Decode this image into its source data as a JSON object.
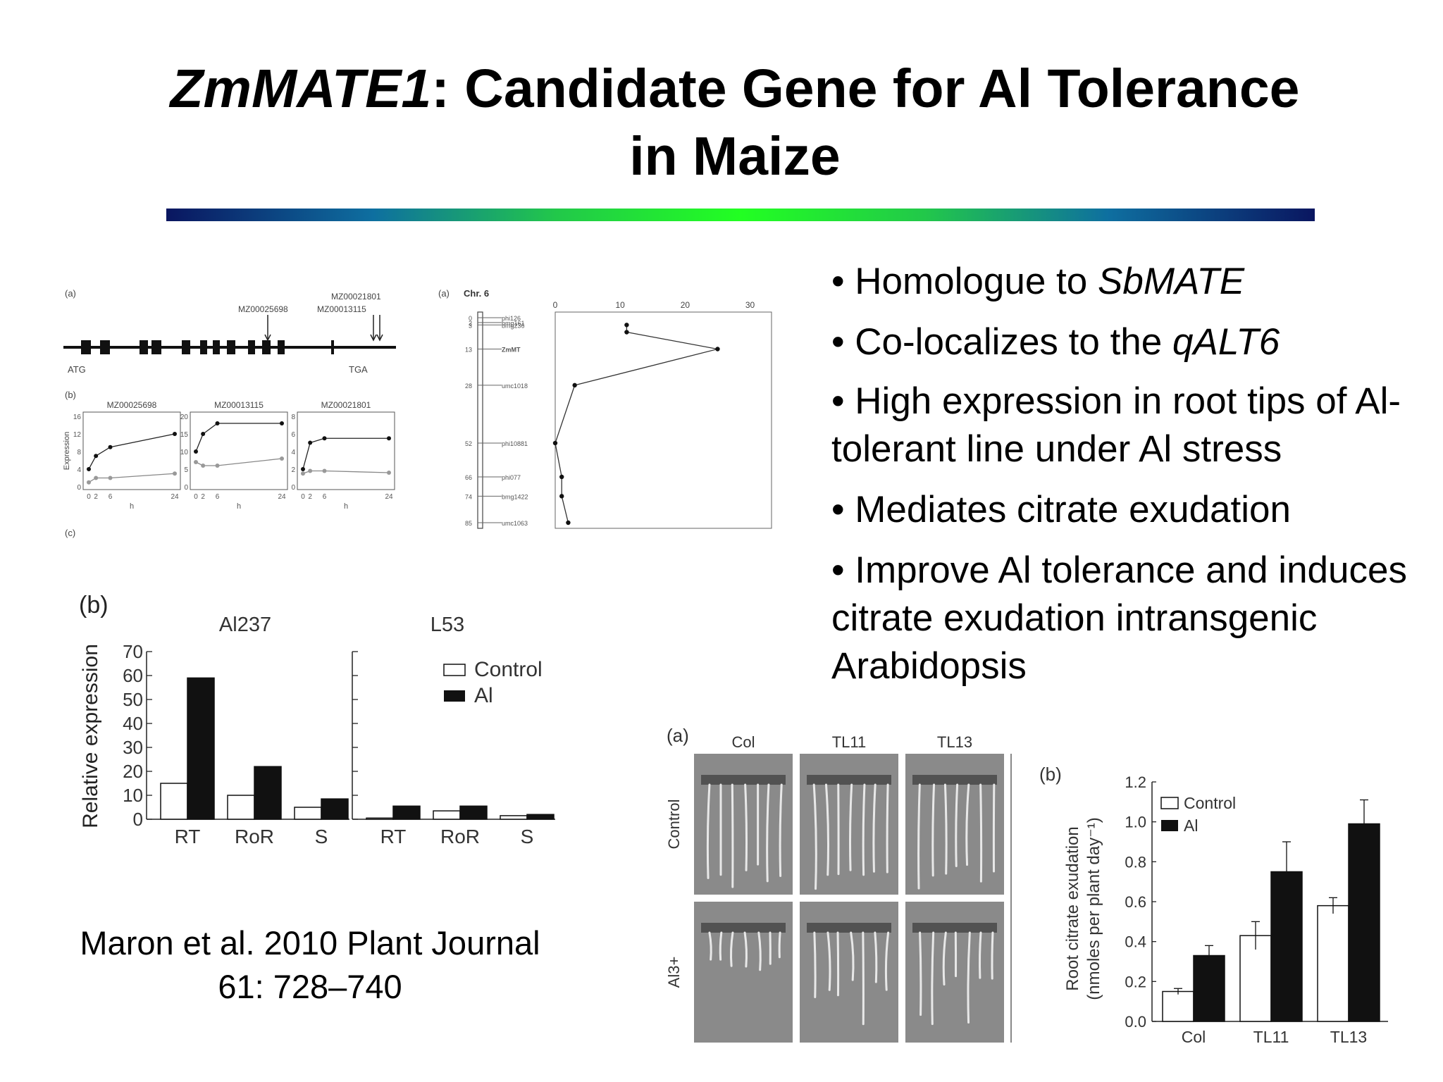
{
  "slide": {
    "title_italic": "ZmMATE1",
    "title_rest": ": Candidate Gene for Al Tolerance",
    "title_line2": "in Maize",
    "accent_gradient": [
      "#0a1660",
      "#0e6fa0",
      "#22ff22"
    ]
  },
  "bullets": [
    {
      "segments": [
        {
          "text": "• Homologue to ",
          "italic": false
        },
        {
          "text": "SbMATE",
          "italic": true
        }
      ]
    },
    {
      "segments": [
        {
          "text": "• Co-localizes to the ",
          "italic": false
        },
        {
          "text": "qALT6",
          "italic": true
        }
      ]
    },
    {
      "segments": [
        {
          "text": "• High expression in root tips of Al-tolerant line under Al stress",
          "italic": false
        }
      ]
    },
    {
      "segments": [
        {
          "text": "• Mediates citrate exudation",
          "italic": false
        }
      ]
    },
    {
      "segments": [
        {
          "text": "• Improve Al tolerance and induces citrate exudation intransgenic Arabidopsis",
          "italic": false
        }
      ]
    }
  ],
  "citation": {
    "line1": "Maron et al. 2010 Plant Journal",
    "line2": "61: 728–740"
  },
  "chart_data": [
    {
      "type": "line",
      "panel": "(b)",
      "title": "MZ00025698",
      "xlabel": "h",
      "ylabel": "Expression",
      "x_ticks": [
        "0",
        "2",
        "6",
        "24"
      ],
      "y_ticks": [
        "0",
        "4",
        "8",
        "12",
        "16"
      ],
      "ylim": [
        0,
        16
      ],
      "series": [
        {
          "x": [
            0,
            2,
            6,
            24
          ],
          "values": [
            4,
            7,
            9,
            12
          ]
        },
        {
          "x": [
            0,
            2,
            6,
            24
          ],
          "values": [
            1,
            2,
            2,
            3
          ]
        }
      ]
    },
    {
      "type": "line",
      "title": "MZ00013115",
      "xlabel": "h",
      "x_ticks": [
        "0",
        "2",
        "6",
        "24"
      ],
      "y_ticks": [
        "0",
        "5",
        "10",
        "15",
        "20"
      ],
      "ylim": [
        0,
        20
      ],
      "series": [
        {
          "x": [
            0,
            2,
            6,
            24
          ],
          "values": [
            10,
            15,
            18,
            18
          ]
        },
        {
          "x": [
            0,
            2,
            6,
            24
          ],
          "values": [
            7,
            6,
            6,
            8
          ]
        }
      ]
    },
    {
      "type": "line",
      "title": "MZ00021801",
      "xlabel": "h",
      "x_ticks": [
        "0",
        "2",
        "6",
        "24"
      ],
      "y_ticks": [
        "0",
        "2",
        "4",
        "6",
        "8"
      ],
      "ylim": [
        0,
        8
      ],
      "series": [
        {
          "x": [
            0,
            2,
            6,
            24
          ],
          "values": [
            2,
            5,
            5.5,
            5.5
          ]
        },
        {
          "x": [
            0,
            2,
            6,
            24
          ],
          "values": [
            1.5,
            1.8,
            1.8,
            1.6
          ]
        }
      ]
    },
    {
      "type": "line",
      "panel": "(a)",
      "title": "Chr. 6",
      "x_ticks": [
        "0",
        "10",
        "20",
        "30"
      ],
      "xlim": [
        0,
        32
      ],
      "markers": [
        {
          "pos": 0,
          "label": "phi126"
        },
        {
          "pos": 2,
          "label": "bmg161"
        },
        {
          "pos": 3,
          "label": "bmg236"
        },
        {
          "pos": 13,
          "label": "ZmMT"
        },
        {
          "pos": 28,
          "label": "umc1018"
        },
        {
          "pos": 52,
          "label": "phi10881"
        },
        {
          "pos": 66,
          "label": "phi077"
        },
        {
          "pos": 74,
          "label": "bmg1422"
        },
        {
          "pos": 85,
          "label": "umc1063"
        }
      ],
      "profile": [
        {
          "pos": 3,
          "value": 11
        },
        {
          "pos": 6,
          "value": 11
        },
        {
          "pos": 13,
          "value": 25
        },
        {
          "pos": 28,
          "value": 3
        },
        {
          "pos": 52,
          "value": 0
        },
        {
          "pos": 66,
          "value": 1
        },
        {
          "pos": 74,
          "value": 1
        },
        {
          "pos": 85,
          "value": 2
        }
      ]
    },
    {
      "type": "bar",
      "panel": "(b)",
      "ylabel": "Relative expression",
      "ylim": [
        0,
        70
      ],
      "y_ticks": [
        "0",
        "10",
        "20",
        "30",
        "40",
        "50",
        "60",
        "70"
      ],
      "legend": [
        "Control",
        "Al"
      ],
      "legend_position": "top-right",
      "groups": [
        {
          "title": "Al237",
          "categories": [
            "RT",
            "RoR",
            "S"
          ],
          "series": [
            {
              "name": "Control",
              "values": [
                15,
                10,
                5
              ]
            },
            {
              "name": "Al",
              "values": [
                59,
                22,
                8.5
              ]
            }
          ]
        },
        {
          "title": "L53",
          "categories": [
            "RT",
            "RoR",
            "S"
          ],
          "series": [
            {
              "name": "Control",
              "values": [
                0.5,
                3.5,
                1.5
              ]
            },
            {
              "name": "Al",
              "values": [
                5.5,
                5.5,
                2
              ]
            }
          ]
        }
      ]
    },
    {
      "type": "bar",
      "panel": "(b)",
      "ylabel_line1": "Root citrate exudation",
      "ylabel_line2": "(nmoles per plant day⁻¹)",
      "ylim": [
        0,
        1.2
      ],
      "y_ticks": [
        "0.0",
        "0.2",
        "0.4",
        "0.6",
        "0.8",
        "1.0",
        "1.2"
      ],
      "categories": [
        "Col",
        "TL11",
        "TL13"
      ],
      "legend": [
        "Control",
        "Al"
      ],
      "legend_position": "top-left",
      "series": [
        {
          "name": "Control",
          "values": [
            0.15,
            0.43,
            0.58
          ],
          "errors": [
            0.015,
            0.07,
            0.04
          ]
        },
        {
          "name": "Al",
          "values": [
            0.33,
            0.75,
            0.99
          ],
          "errors": [
            0.05,
            0.15,
            0.12
          ]
        }
      ]
    }
  ],
  "figures": {
    "gene_structure": {
      "panel_a": "(a)",
      "panel_c": "(c)",
      "start_label": "ATG",
      "end_label": "TGA",
      "marker_labels": [
        "MZ00025698",
        "MZ00013115",
        "MZ00021801"
      ]
    },
    "root_photo": {
      "panel": "(a)",
      "columns": [
        "Col",
        "TL11",
        "TL13"
      ],
      "rows": [
        "Control",
        "Al3+"
      ]
    }
  }
}
